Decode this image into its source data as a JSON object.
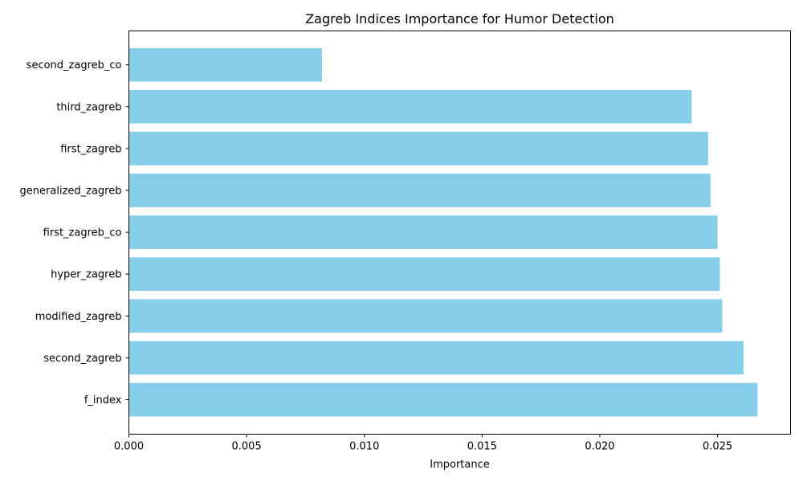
{
  "chart_data": {
    "type": "bar",
    "orientation": "horizontal",
    "title": "Zagreb Indices Importance for Humor Detection",
    "xlabel": "Importance",
    "ylabel": "",
    "categories": [
      "f_index",
      "second_zagreb",
      "modified_zagreb",
      "hyper_zagreb",
      "first_zagreb_co",
      "generalized_zagreb",
      "first_zagreb",
      "third_zagreb",
      "second_zagreb_co"
    ],
    "values": [
      0.0267,
      0.0261,
      0.0252,
      0.0251,
      0.025,
      0.0247,
      0.0246,
      0.0239,
      0.0082
    ],
    "xlim": [
      0,
      0.0281
    ],
    "xticks": [
      0,
      0.005,
      0.01,
      0.015,
      0.02,
      0.025
    ],
    "xtick_labels": [
      "0.000",
      "0.005",
      "0.010",
      "0.015",
      "0.020",
      "0.025"
    ],
    "bar_color": "#87ceeb",
    "grid": false,
    "legend": "none"
  }
}
